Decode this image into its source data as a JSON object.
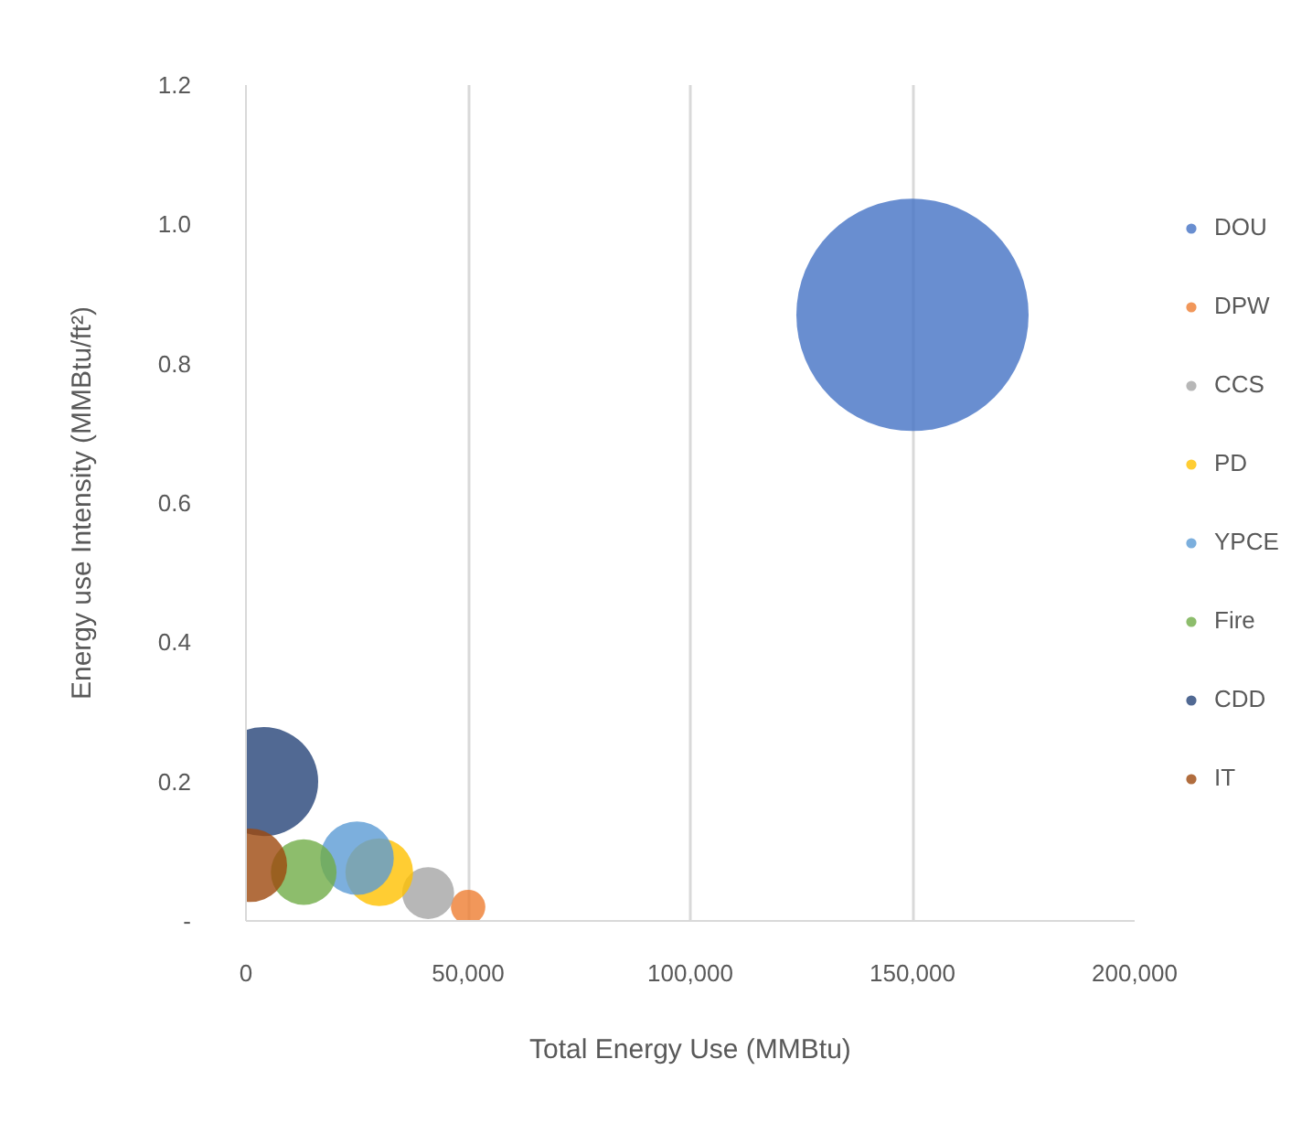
{
  "chart_data": {
    "type": "bubble",
    "xlabel": "Total Energy Use (MMBtu)",
    "ylabel": "Energy use Intensity (MMBtu/ft²)",
    "xlim": [
      0,
      200000
    ],
    "ylim": [
      0,
      1.2
    ],
    "xticks": [
      0,
      {
        "value": 50000,
        "label": "50,000"
      },
      {
        "value": 100000,
        "label": "100,000"
      },
      {
        "value": 150000,
        "label": "150,000"
      },
      {
        "value": 200000,
        "label": "200,000"
      }
    ],
    "yticks": [
      {
        "value": 0,
        "label": "-"
      },
      0.2,
      0.4,
      0.6,
      0.8,
      {
        "value": 1,
        "label": "1.0"
      },
      1.2
    ],
    "grid": "x",
    "legend": "right",
    "series": [
      {
        "name": "DOU",
        "color": "#4472c4",
        "x": [
          150000
        ],
        "values": [
          0.87
        ],
        "sizes": [
          1
        ]
      },
      {
        "name": "DPW",
        "color": "#ed7d31",
        "x": [
          50000
        ],
        "values": [
          0.02
        ],
        "sizes": [
          0.022
        ]
      },
      {
        "name": "CCS",
        "color": "#a5a5a5",
        "x": [
          41000
        ],
        "values": [
          0.04
        ],
        "sizes": [
          0.05
        ]
      },
      {
        "name": "PD",
        "color": "#ffc000",
        "x": [
          30000
        ],
        "values": [
          0.07
        ],
        "sizes": [
          0.085
        ]
      },
      {
        "name": "YPCE",
        "color": "#5b9bd5",
        "x": [
          25000
        ],
        "values": [
          0.09
        ],
        "sizes": [
          0.1
        ]
      },
      {
        "name": "Fire",
        "color": "#70ad47",
        "x": [
          13000
        ],
        "values": [
          0.07
        ],
        "sizes": [
          0.08
        ]
      },
      {
        "name": "CDD",
        "color": "#264478",
        "x": [
          4000
        ],
        "values": [
          0.2
        ],
        "sizes": [
          0.22
        ]
      },
      {
        "name": "IT",
        "color": "#9e480e",
        "x": [
          1000
        ],
        "values": [
          0.08
        ],
        "sizes": [
          0.1
        ]
      }
    ]
  }
}
